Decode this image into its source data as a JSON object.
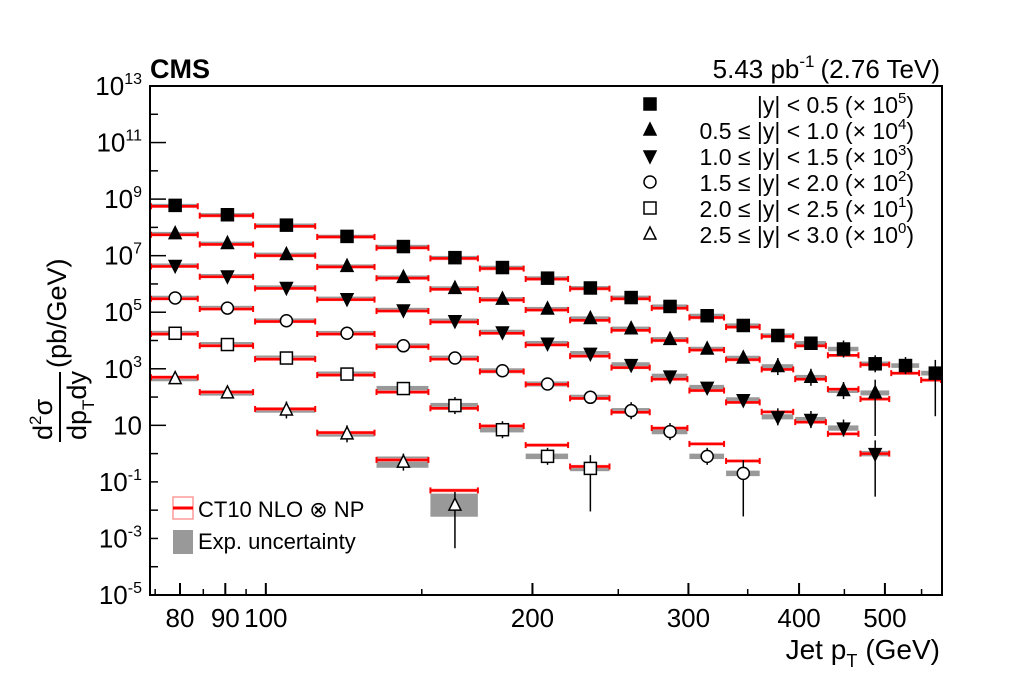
{
  "chart_data": {
    "type": "scatter",
    "experiment_label": "CMS",
    "lumi_text": "5.43 pb",
    "lumi_exp": "-1",
    "energy_text": "(2.76 TeV)",
    "xlabel_main": "Jet p",
    "xlabel_sub": "T",
    "xlabel_unit": "(GeV)",
    "ylabel": "d²σ/dp_T dy (pb/GeV)",
    "ylabel_num_d": "d",
    "ylabel_num_exp": "2",
    "ylabel_num_sigma": "σ",
    "ylabel_den_dp": "dp",
    "ylabel_den_T": "T",
    "ylabel_den_dy": "dy",
    "ylabel_unit": "(pb/GeV)",
    "x_scale": "log",
    "y_scale": "log",
    "xlim": [
      74,
      580
    ],
    "ylim": [
      1e-05,
      10000000000000.0
    ],
    "x_ticks": [
      {
        "value": 80,
        "label": "80"
      },
      {
        "value": 90,
        "label": "90"
      },
      {
        "value": 100,
        "label": "100"
      },
      {
        "value": 200,
        "label": "200"
      },
      {
        "value": 300,
        "label": "300"
      },
      {
        "value": 400,
        "label": "400"
      },
      {
        "value": 500,
        "label": "500"
      }
    ],
    "y_ticks": [
      {
        "value": 10000000000000.0,
        "base": "10",
        "exp": "13"
      },
      {
        "value": 100000000000.0,
        "base": "10",
        "exp": "11"
      },
      {
        "value": 1000000000.0,
        "base": "10",
        "exp": "9"
      },
      {
        "value": 10000000.0,
        "base": "10",
        "exp": "7"
      },
      {
        "value": 100000.0,
        "base": "10",
        "exp": "5"
      },
      {
        "value": 1000.0,
        "base": "10",
        "exp": "3"
      },
      {
        "value": 10,
        "base": "10",
        "exp": ""
      },
      {
        "value": 0.1,
        "base": "10",
        "exp": "-1"
      },
      {
        "value": 0.001,
        "base": "10",
        "exp": "-3"
      },
      {
        "value": 1e-05,
        "base": "10",
        "exp": "-5"
      }
    ],
    "bin_edges": [
      74,
      84,
      97,
      114,
      133,
      153,
      174,
      196,
      220,
      245,
      272,
      300,
      330,
      362,
      395,
      430,
      468,
      507,
      548,
      592
    ],
    "legend_position": "top-right",
    "series": [
      {
        "name": "|y| < 0.5 (× 10⁵)",
        "label_main": "|y| < 0.5 (× 10",
        "label_exp": "5",
        "label_end": ")",
        "marker": "filled-square",
        "points": [
          [
            79,
            600000000.0
          ],
          [
            90.5,
            280000000.0
          ],
          [
            105.5,
            120000000.0
          ],
          [
            123.5,
            48000000.0
          ],
          [
            143,
            21000000.0
          ],
          [
            163.5,
            8500000.0
          ],
          [
            185,
            3800000.0
          ],
          [
            208,
            1600000.0
          ],
          [
            232.5,
            720000.0
          ],
          [
            258.5,
            330000.0
          ],
          [
            286,
            160000.0
          ],
          [
            315,
            75000.0
          ],
          [
            346,
            34000.0
          ],
          [
            378.5,
            15000.0
          ],
          [
            412.5,
            8000.0
          ],
          [
            449,
            5000.0
          ],
          [
            487.5,
            1500.0
          ],
          [
            527.5,
            1300.0
          ],
          [
            570,
            700.0
          ]
        ],
        "theory": [
          [
            560000000.0
          ],
          [
            260000000.0
          ],
          [
            110000000.0
          ],
          [
            46000000.0
          ],
          [
            19000000.0
          ],
          [
            8000000.0
          ],
          [
            3500000.0
          ],
          [
            1500000.0
          ],
          [
            680000.0
          ],
          [
            300000.0
          ],
          [
            140000.0
          ],
          [
            65000.0
          ],
          [
            30000.0
          ],
          [
            14000.0
          ],
          [
            6500.0
          ],
          [
            3000.0
          ],
          [
            1400.0
          ],
          [
            700.0
          ],
          [
            400.0
          ]
        ]
      },
      {
        "name": "0.5 ≤ |y| < 1.0 (× 10⁴)",
        "label_main": "0.5 ≤ |y| < 1.0 (× 10",
        "label_exp": "4",
        "label_end": ")",
        "marker": "filled-triangle-up",
        "points": [
          [
            79,
            60000000.0
          ],
          [
            90.5,
            27000000.0
          ],
          [
            105.5,
            11000000.0
          ],
          [
            123.5,
            4200000.0
          ],
          [
            143,
            1700000.0
          ],
          [
            163.5,
            700000.0
          ],
          [
            185,
            290000.0
          ],
          [
            208,
            130000.0
          ],
          [
            232.5,
            60000.0
          ],
          [
            258.5,
            26000.0
          ],
          [
            286,
            11000.0
          ],
          [
            315,
            5000.0
          ],
          [
            346,
            2400.0
          ],
          [
            378.5,
            1200.0
          ],
          [
            412.5,
            500.0
          ],
          [
            449,
            170.0
          ],
          [
            487.5,
            140.0
          ]
        ],
        "theory": [
          [
            55000000.0
          ],
          [
            25000000.0
          ],
          [
            10000000.0
          ],
          [
            4000000.0
          ],
          [
            1600000.0
          ],
          [
            650000.0
          ],
          [
            270000.0
          ],
          [
            120000.0
          ],
          [
            52000.0
          ],
          [
            23000.0
          ],
          [
            10000.0
          ],
          [
            4600.0
          ],
          [
            2100.0
          ],
          [
            950.0
          ],
          [
            430.0
          ],
          [
            190.0
          ],
          [
            85.0
          ]
        ]
      },
      {
        "name": "1.0 ≤ |y| < 1.5 (× 10³)",
        "label_main": "1.0 ≤ |y| < 1.5 (× 10",
        "label_exp": "3",
        "label_end": ")",
        "marker": "filled-triangle-down",
        "points": [
          [
            79,
            4500000.0
          ],
          [
            90.5,
            1900000.0
          ],
          [
            105.5,
            750000.0
          ],
          [
            123.5,
            300000.0
          ],
          [
            143,
            120000.0
          ],
          [
            163.5,
            50000.0
          ],
          [
            185,
            20000.0
          ],
          [
            208,
            8000.0
          ],
          [
            232.5,
            3500.0
          ],
          [
            258.5,
            1400.0
          ],
          [
            286,
            550.0
          ],
          [
            315,
            220.0
          ],
          [
            346,
            80.0
          ],
          [
            378.5,
            20.0
          ],
          [
            412.5,
            16.0
          ],
          [
            449,
            8.0
          ],
          [
            487.5,
            1.0
          ]
        ],
        "theory": [
          [
            4200000.0
          ],
          [
            1800000.0
          ],
          [
            700000.0
          ],
          [
            280000.0
          ],
          [
            110000.0
          ],
          [
            45000.0
          ],
          [
            18000.0
          ],
          [
            7000.0
          ],
          [
            2800.0
          ],
          [
            1100.0
          ],
          [
            430.0
          ],
          [
            170.0
          ],
          [
            65.0
          ],
          [
            30.0
          ],
          [
            13.0
          ],
          [
            5.0
          ],
          [
            1.0
          ]
        ]
      },
      {
        "name": "1.5 ≤ |y| < 2.0 (× 10²)",
        "label_main": "1.5 ≤ |y| < 2.0 (× 10",
        "label_exp": "2",
        "label_end": ")",
        "marker": "open-circle",
        "points": [
          [
            79,
            320000.0
          ],
          [
            90.5,
            140000.0
          ],
          [
            105.5,
            50000.0
          ],
          [
            123.5,
            18000.0
          ],
          [
            143,
            6500.0
          ],
          [
            163.5,
            2400.0
          ],
          [
            185,
            850.0
          ],
          [
            208,
            290.0
          ],
          [
            232.5,
            98.0
          ],
          [
            258.5,
            33.0
          ],
          [
            286,
            6.0
          ],
          [
            315,
            0.8
          ],
          [
            346,
            0.2
          ]
        ],
        "theory": [
          [
            300000.0
          ],
          [
            130000.0
          ],
          [
            47000.0
          ],
          [
            17000.0
          ],
          [
            6000.0
          ],
          [
            2200.0
          ],
          [
            800.0
          ],
          [
            280.0
          ],
          [
            90.0
          ],
          [
            29.0
          ],
          [
            8.0
          ],
          [
            2.2
          ],
          [
            0.55
          ]
        ]
      },
      {
        "name": "2.0 ≤ |y| < 2.5 (× 10¹)",
        "label_main": "2.0 ≤ |y| < 2.5 (× 10",
        "label_exp": "1",
        "label_end": ")",
        "marker": "open-square",
        "points": [
          [
            79,
            18000.0
          ],
          [
            90.5,
            7200.0
          ],
          [
            105.5,
            2400.0
          ],
          [
            123.5,
            650.0
          ],
          [
            143,
            200.0
          ],
          [
            163.5,
            50.0
          ],
          [
            185,
            7.0
          ],
          [
            208,
            0.8
          ],
          [
            232.5,
            0.3
          ]
        ],
        "theory": [
          [
            17000.0
          ],
          [
            6500.0
          ],
          [
            2200.0
          ],
          [
            600.0
          ],
          [
            150.0
          ],
          [
            40.0
          ],
          [
            9.5
          ],
          [
            2.0
          ],
          [
            0.35
          ]
        ]
      },
      {
        "name": "2.5 ≤ |y| < 3.0 (× 10⁰)",
        "label_main": "2.5 ≤ |y| < 3.0 (× 10",
        "label_exp": "0",
        "label_end": ")",
        "marker": "open-triangle-up",
        "points": [
          [
            79,
            450.0
          ],
          [
            90.5,
            140.0
          ],
          [
            105.5,
            35.0
          ],
          [
            123.5,
            5.0
          ],
          [
            143,
            0.5
          ],
          [
            163.5,
            0.015
          ]
        ],
        "theory": [
          [
            500.0
          ],
          [
            150.0
          ],
          [
            38.0
          ],
          [
            5.5
          ],
          [
            0.6
          ],
          [
            0.05
          ]
        ]
      }
    ],
    "theory_label": "CT10 NLO ⊗ NP",
    "exp_label": "Exp. uncertainty",
    "colors": {
      "theory": "#ff0000",
      "theory_band": "#ff9a9a",
      "exp_band": "#999999",
      "markers": "#000000"
    }
  }
}
